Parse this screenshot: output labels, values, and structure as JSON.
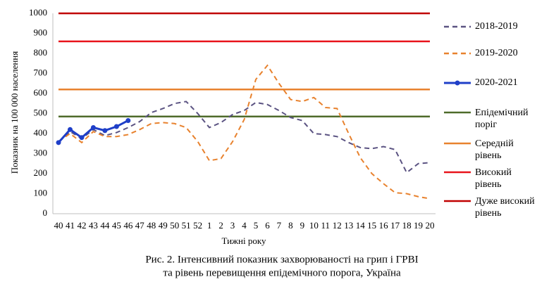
{
  "chart_data": {
    "type": "line",
    "ylabel": "Показник на 100 000 населення",
    "xlabel": "Тижні року",
    "caption": [
      "Рис. 2. Інтенсивний показник захворюваності на грип і ГРВІ",
      "та рівень перевищення епідемічного порога, Україна"
    ],
    "categories": [
      "40",
      "41",
      "42",
      "43",
      "44",
      "45",
      "46",
      "47",
      "48",
      "49",
      "50",
      "51",
      "52",
      "1",
      "2",
      "3",
      "4",
      "5",
      "6",
      "7",
      "8",
      "9",
      "10",
      "11",
      "12",
      "13",
      "14",
      "15",
      "16",
      "17",
      "18",
      "19",
      "20"
    ],
    "ylim": [
      0,
      1000
    ],
    "yticks": [
      0,
      100,
      200,
      300,
      400,
      500,
      600,
      700,
      800,
      900,
      1000
    ],
    "series": [
      {
        "name": "2018-2019",
        "color": "#5b5382",
        "dash": true,
        "markers": false,
        "values": [
          360,
          410,
          375,
          420,
          390,
          405,
          430,
          460,
          505,
          525,
          550,
          560,
          500,
          430,
          455,
          495,
          515,
          555,
          545,
          515,
          480,
          465,
          400,
          395,
          385,
          355,
          330,
          325,
          335,
          320,
          205,
          250,
          255
        ]
      },
      {
        "name": "2019-2020",
        "color": "#e8822e",
        "dash": true,
        "markers": false,
        "values": [
          360,
          400,
          355,
          410,
          385,
          385,
          395,
          420,
          450,
          455,
          450,
          430,
          360,
          265,
          275,
          360,
          470,
          670,
          740,
          650,
          570,
          560,
          580,
          530,
          525,
          400,
          280,
          200,
          150,
          105,
          100,
          85,
          75
        ]
      },
      {
        "name": "2020-2021",
        "color": "#1f3fc8",
        "dash": false,
        "markers": true,
        "values": [
          355,
          420,
          380,
          430,
          415,
          435,
          465,
          null,
          null,
          null,
          null,
          null,
          null,
          null,
          null,
          null,
          null,
          null,
          null,
          null,
          null,
          null,
          null,
          null,
          null,
          null,
          null,
          null,
          null,
          null,
          null,
          null,
          null
        ]
      }
    ],
    "thresholds": [
      {
        "name": "Епідемічний поріг",
        "value": 485,
        "color": "#4e6b2a"
      },
      {
        "name": "Середній рівень",
        "value": 620,
        "color": "#e8822e"
      },
      {
        "name": "Високий рівень",
        "value": 860,
        "color": "#e8141c"
      },
      {
        "name": "Дуже високий рівень",
        "value": 1000,
        "color": "#c00000"
      }
    ]
  }
}
